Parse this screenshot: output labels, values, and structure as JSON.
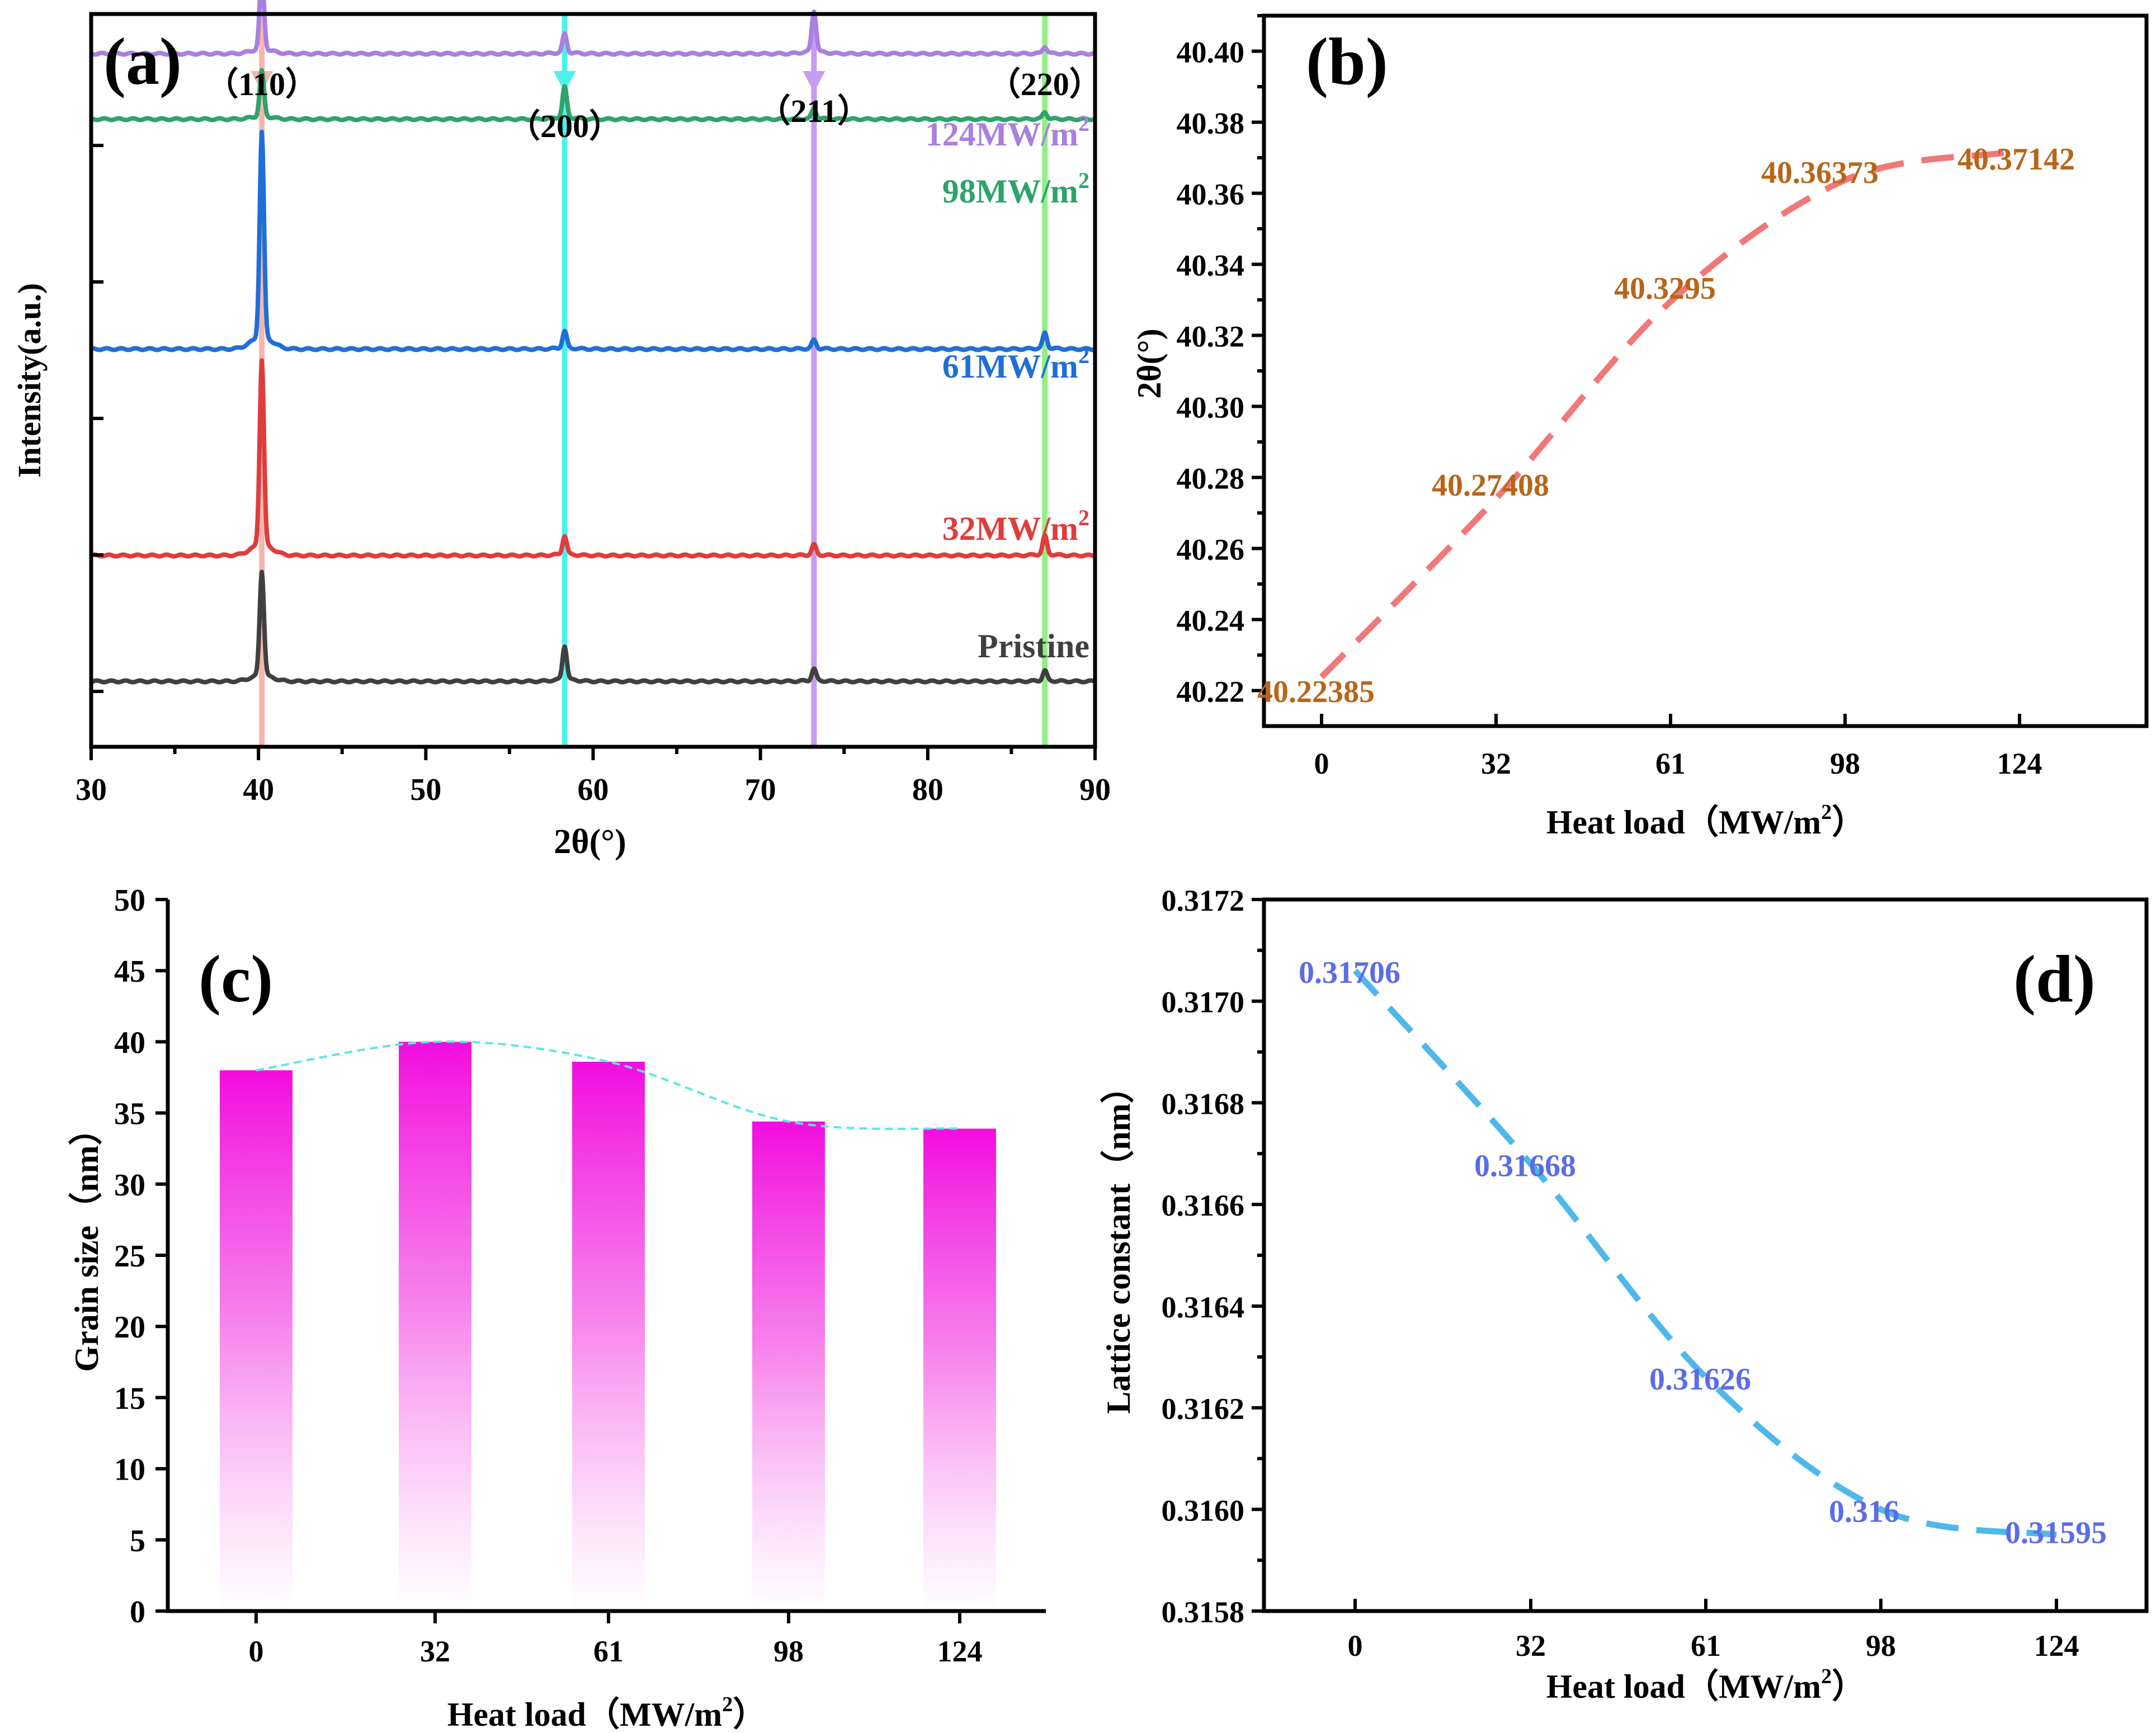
{
  "chart_data": [
    {
      "panel": "(a)",
      "type": "line",
      "xlabel": "2θ(°)",
      "ylabel": "Intensity(a.u.)",
      "xlim": [
        30,
        90
      ],
      "xticks": [
        30,
        40,
        50,
        60,
        70,
        80,
        90
      ],
      "peaks": [
        {
          "hkl": "（110）",
          "two_theta": 40.2,
          "marker_color": "#f4b6b0"
        },
        {
          "hkl": "（200）",
          "two_theta": 58.3,
          "marker_color": "#4ff0ea"
        },
        {
          "hkl": "（211）",
          "two_theta": 73.2,
          "marker_color": "#c69cf0"
        },
        {
          "hkl": "（220）",
          "two_theta": 87.0,
          "marker_color": "#93ee85"
        }
      ],
      "series": [
        {
          "name": "Pristine",
          "label_main": "Pristine",
          "label_sup": "",
          "color": "#404040",
          "baseline": 0.0,
          "peak_heights": [
            0.62,
            0.2,
            0.07,
            0.06
          ]
        },
        {
          "name": "32MW/m2",
          "label_main": "32MW/m",
          "label_sup": "2",
          "color": "#e03c3c",
          "baseline": 0.75,
          "peak_heights": [
            1.1,
            0.11,
            0.06,
            0.11
          ]
        },
        {
          "name": "61MW/m2",
          "label_main": "61MW/m",
          "label_sup": "2",
          "color": "#1f6fd6",
          "baseline": 1.98,
          "peak_heights": [
            1.22,
            0.1,
            0.05,
            0.09
          ]
        },
        {
          "name": "98MW/m2",
          "label_main": "98MW/m",
          "label_sup": "2",
          "color": "#2ea36a",
          "baseline": 3.35,
          "peak_heights": [
            0.27,
            0.18,
            0.06,
            0.04
          ]
        },
        {
          "name": "124MW/m2",
          "label_main": "124MW/m",
          "label_sup": "2",
          "color": "#a97fe0",
          "baseline": 3.74,
          "peak_heights": [
            0.45,
            0.11,
            0.24,
            0.04
          ]
        }
      ]
    },
    {
      "panel": "(b)",
      "type": "line",
      "xlabel_main": "Heat load（MW/m",
      "xlabel_sup": "2",
      "xlabel_end": "）",
      "ylabel": "2θ(°)",
      "categories": [
        "0",
        "32",
        "61",
        "98",
        "124"
      ],
      "values": [
        40.22385,
        40.27408,
        40.3295,
        40.36373,
        40.37142
      ],
      "labels": [
        "40.22385",
        "40.27408",
        "40.3295",
        "40.36373",
        "40.37142"
      ],
      "ylim": [
        40.21,
        40.41
      ],
      "yticks": [
        "40.22",
        "40.24",
        "40.26",
        "40.28",
        "40.30",
        "40.32",
        "40.34",
        "40.36",
        "40.38",
        "40.40"
      ],
      "line_color": "#f07878",
      "label_color": "#b8651a"
    },
    {
      "panel": "(c)",
      "type": "bar",
      "xlabel_main": "Heat load（MW/m",
      "xlabel_sup": "2",
      "xlabel_end": "）",
      "ylabel": "Grain size（nm）",
      "categories": [
        "0",
        "32",
        "61",
        "98",
        "124"
      ],
      "values": [
        38.0,
        40.0,
        38.6,
        34.4,
        33.9
      ],
      "ylim": [
        0,
        50
      ],
      "yticks": [
        "0",
        "5",
        "10",
        "15",
        "20",
        "25",
        "30",
        "35",
        "40",
        "45",
        "50"
      ],
      "bar_color": "#f20ddf",
      "line_color": "#5ce6e6"
    },
    {
      "panel": "(d)",
      "type": "line",
      "xlabel_main": "Heat load（MW/m",
      "xlabel_sup": "2",
      "xlabel_end": "）",
      "ylabel": "Lattice constant（nm）",
      "categories": [
        "0",
        "32",
        "61",
        "98",
        "124"
      ],
      "values": [
        0.31706,
        0.31668,
        0.31626,
        0.316,
        0.31595
      ],
      "labels": [
        "0.31706",
        "0.31668",
        "0.31626",
        "0.316",
        "0.31595"
      ],
      "ylim": [
        0.3158,
        0.3172
      ],
      "yticks": [
        "0.3158",
        "0.3160",
        "0.3162",
        "0.3164",
        "0.3166",
        "0.3168",
        "0.3170",
        "0.3172"
      ],
      "line_color": "#4fb8ea",
      "label_color": "#5b6de6"
    }
  ]
}
